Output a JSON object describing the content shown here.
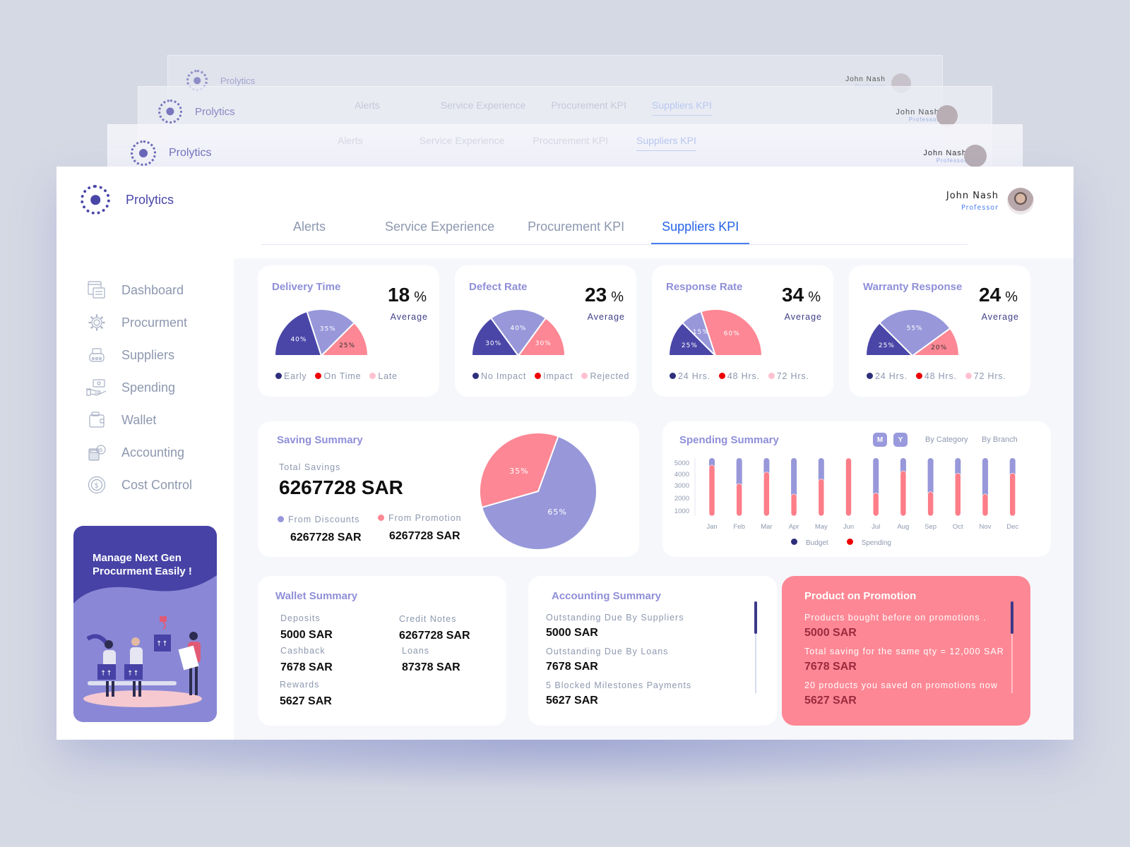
{
  "app": {
    "name": "Prolytics"
  },
  "user": {
    "name": "John Nash",
    "role": "Professor"
  },
  "sidebar": {
    "items": [
      {
        "label": "Dashboard",
        "icon": "dashboard-icon"
      },
      {
        "label": "Procurment",
        "icon": "gear-icon"
      },
      {
        "label": "Suppliers",
        "icon": "suppliers-icon"
      },
      {
        "label": "Spending",
        "icon": "hand-money-icon"
      },
      {
        "label": "Wallet",
        "icon": "wallet-icon"
      },
      {
        "label": "Accounting",
        "icon": "calculator-icon"
      },
      {
        "label": "Cost Control",
        "icon": "dollar-coin-icon"
      }
    ],
    "promo": {
      "title": "Manage Next Gen Procurment Easily !"
    }
  },
  "tabs": [
    {
      "label": "Alerts",
      "active": false
    },
    {
      "label": "Service Experience",
      "active": false
    },
    {
      "label": "Procurement KPI",
      "active": false
    },
    {
      "label": "Suppliers KPI",
      "active": true
    }
  ],
  "kpis": [
    {
      "title": "Delivery Time",
      "value": "18",
      "unit": "%",
      "sub": "Average",
      "slices": [
        {
          "label": "40%",
          "value": 40,
          "color": "#4a46a8"
        },
        {
          "label": "35%",
          "value": 35,
          "color": "#9797da"
        },
        {
          "label": "25%",
          "value": 25,
          "color": "#fd8794"
        }
      ],
      "legend": [
        {
          "label": "Early",
          "color": "#2e2f7a"
        },
        {
          "label": "On Time",
          "color": "#ee0000"
        },
        {
          "label": "Late",
          "color": "#ffc0d0"
        }
      ]
    },
    {
      "title": "Defect Rate",
      "value": "23",
      "unit": "%",
      "sub": "Average",
      "slices": [
        {
          "label": "30%",
          "value": 30,
          "color": "#4a46a8"
        },
        {
          "label": "40%",
          "value": 40,
          "color": "#9797da"
        },
        {
          "label": "30%",
          "value": 30,
          "color": "#fd8794"
        }
      ],
      "legend": [
        {
          "label": "No Impact",
          "color": "#2e2f7a"
        },
        {
          "label": "Impact",
          "color": "#ee0000"
        },
        {
          "label": "Rejected",
          "color": "#ffc0d0"
        }
      ]
    },
    {
      "title": "Response Rate",
      "value": "34",
      "unit": "%",
      "sub": "Average",
      "slices": [
        {
          "label": "25%",
          "value": 25,
          "color": "#4a46a8"
        },
        {
          "label": "15%",
          "value": 15,
          "color": "#9797da"
        },
        {
          "label": "60%",
          "value": 60,
          "color": "#fd8794"
        }
      ],
      "legend": [
        {
          "label": "24 Hrs.",
          "color": "#2e2f7a"
        },
        {
          "label": "48 Hrs.",
          "color": "#ee0000"
        },
        {
          "label": "72 Hrs.",
          "color": "#ffc0d0"
        }
      ]
    },
    {
      "title": "Warranty Response",
      "value": "24",
      "unit": "%",
      "sub": "Average",
      "slices": [
        {
          "label": "25%",
          "value": 25,
          "color": "#4a46a8"
        },
        {
          "label": "55%",
          "value": 55,
          "color": "#9797da"
        },
        {
          "label": "20%",
          "value": 20,
          "color": "#fd8794"
        }
      ],
      "legend": [
        {
          "label": "24 Hrs.",
          "color": "#2e2f7a"
        },
        {
          "label": "48 Hrs.",
          "color": "#ee0000"
        },
        {
          "label": "72 Hrs.",
          "color": "#ffc0d0"
        }
      ]
    }
  ],
  "saving": {
    "title": "Saving Summary",
    "total_label": "Total Savings",
    "total_value": "6267728 SAR",
    "discounts_label": "From Discounts",
    "discounts_value": "6267728 SAR",
    "promotion_label": "From Promotion",
    "promotion_value": "6267728 SAR",
    "pie": [
      {
        "label": "65%",
        "value": 65,
        "color": "#9797da"
      },
      {
        "label": "35%",
        "value": 35,
        "color": "#fd8794"
      }
    ]
  },
  "spending": {
    "title": "Spending Summary",
    "toggle_m": "M",
    "toggle_y": "Y",
    "by_category": "By Category",
    "by_branch": "By Branch",
    "legend_budget": "Budget",
    "legend_spending": "Spending"
  },
  "wallet": {
    "title": "Wallet Summary",
    "items": [
      {
        "label": "Deposits",
        "value": "5000 SAR"
      },
      {
        "label": "Credit Notes",
        "value": "6267728 SAR"
      },
      {
        "label": "Cashback",
        "value": "7678 SAR"
      },
      {
        "label": "Loans",
        "value": "87378 SAR"
      },
      {
        "label": "Rewards",
        "value": "5627 SAR"
      }
    ]
  },
  "accounting": {
    "title": "Accounting Summary",
    "items": [
      {
        "label": "Outstanding Due By Suppliers",
        "value": "5000 SAR"
      },
      {
        "label": "Outstanding Due By Loans",
        "value": "7678 SAR"
      },
      {
        "label": "5 Blocked Milestones Payments",
        "value": "5627 SAR"
      }
    ]
  },
  "promotion": {
    "title": "Product on Promotion",
    "items": [
      {
        "label": "Products bought before on promotions .",
        "value": "5000 SAR"
      },
      {
        "label": "Total saving for the same qty = 12,000 SAR",
        "value": "7678 SAR"
      },
      {
        "label": "20 products you saved on promotions now",
        "value": "5627 SAR"
      }
    ]
  },
  "ghost": {
    "tabs": [
      "Alerts",
      "Service Experience",
      "Procurement KPI",
      "Suppliers KPI"
    ]
  },
  "chart_data": [
    {
      "type": "pie",
      "title": "Delivery Time",
      "categories": [
        "Early",
        "On Time",
        "Late"
      ],
      "values": [
        40,
        35,
        25
      ],
      "annotation": "18 % Average"
    },
    {
      "type": "pie",
      "title": "Defect Rate",
      "categories": [
        "No Impact",
        "Impact",
        "Rejected"
      ],
      "values": [
        30,
        40,
        30
      ],
      "annotation": "23 % Average"
    },
    {
      "type": "pie",
      "title": "Response Rate",
      "categories": [
        "24 Hrs.",
        "48 Hrs.",
        "72 Hrs."
      ],
      "values": [
        25,
        15,
        60
      ],
      "annotation": "34 % Average"
    },
    {
      "type": "pie",
      "title": "Warranty Response",
      "categories": [
        "24 Hrs.",
        "48 Hrs.",
        "72 Hrs."
      ],
      "values": [
        25,
        55,
        20
      ],
      "annotation": "24 % Average"
    },
    {
      "type": "pie",
      "title": "Saving Summary",
      "categories": [
        "From Discounts",
        "From Promotion"
      ],
      "values": [
        65,
        35
      ]
    },
    {
      "type": "bar",
      "title": "Spending Summary",
      "categories": [
        "Jan",
        "Feb",
        "Mar",
        "Apr",
        "May",
        "Jun",
        "Jul",
        "Aug",
        "Sep",
        "Oct",
        "Nov",
        "Dec"
      ],
      "series": [
        {
          "name": "Budget",
          "values": [
            5000,
            5000,
            5000,
            5000,
            5000,
            5000,
            5000,
            5000,
            5000,
            5000,
            5000,
            5000
          ]
        },
        {
          "name": "Spending",
          "values": [
            4400,
            2800,
            3800,
            1900,
            3200,
            5000,
            2000,
            3900,
            2100,
            3700,
            1900,
            3700
          ]
        }
      ],
      "yticks": [
        1000,
        2000,
        3000,
        4000,
        5000
      ],
      "ylim": [
        0,
        5000
      ],
      "xlabel": "",
      "ylabel": ""
    }
  ]
}
